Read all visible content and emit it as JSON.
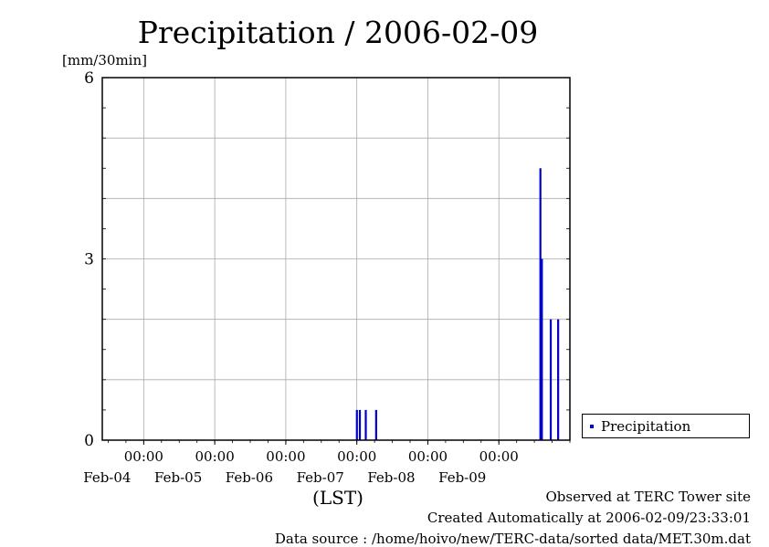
{
  "chart_data": {
    "type": "bar",
    "title": "Precipitation / 2006-02-09",
    "ylabel": "[mm/30min]",
    "xlabel": "(LST)",
    "ylim": [
      0,
      6
    ],
    "yticks": [
      "0",
      "3",
      "6"
    ],
    "xlim": [
      "2006-02-03 10:00",
      "2006-02-10 00:00"
    ],
    "xticks": [
      {
        "time": "00:00",
        "date": "Feb-04"
      },
      {
        "time": "00:00",
        "date": "Feb-05"
      },
      {
        "time": "00:00",
        "date": "Feb-06"
      },
      {
        "time": "00:00",
        "date": "Feb-07"
      },
      {
        "time": "00:00",
        "date": "Feb-08"
      },
      {
        "time": "00:00",
        "date": "Feb-09"
      }
    ],
    "grid": true,
    "legend_position": "right",
    "series": [
      {
        "name": "Precipitation",
        "color": "#0000cc",
        "x": [
          "2006-02-07 00:00",
          "2006-02-07 01:00",
          "2006-02-07 03:00",
          "2006-02-07 06:30",
          "2006-02-09 14:00",
          "2006-02-09 14:30",
          "2006-02-09 17:30",
          "2006-02-09 20:00"
        ],
        "values": [
          0.5,
          0.5,
          0.5,
          0.5,
          4.5,
          3.0,
          2.0,
          2.0
        ]
      }
    ]
  },
  "footer": {
    "observed": "Observed at TERC Tower site",
    "created": "Created Automatically at 2006-02-09/23:33:01",
    "source": "Data source : /home/hoivo/new/TERC-data/sorted data/MET.30m.dat"
  }
}
